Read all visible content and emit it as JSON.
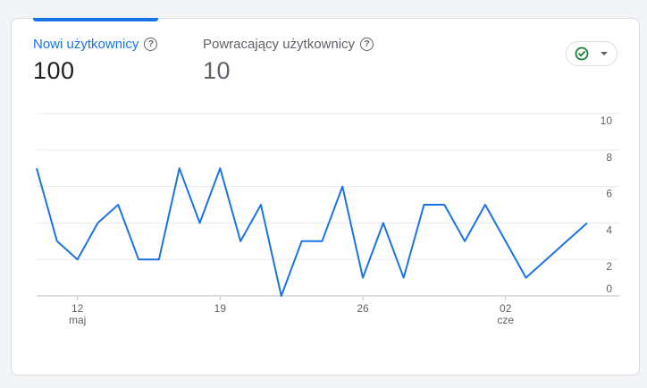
{
  "metrics": {
    "primary": {
      "label": "Nowi użytkownicy",
      "value": "100"
    },
    "secondary": {
      "label": "Powracający użytkownicy",
      "value": "10"
    }
  },
  "icons": {
    "help": "help-circle-icon",
    "check": "check-circle-icon",
    "dropdown": "chevron-down-icon"
  },
  "colors": {
    "accent": "#1a73e8",
    "check": "#188038"
  },
  "chart_data": {
    "type": "line",
    "x": [
      10,
      11,
      12,
      13,
      14,
      15,
      16,
      17,
      18,
      19,
      20,
      21,
      22,
      23,
      24,
      25,
      26,
      27,
      28,
      29,
      30,
      31,
      32,
      33,
      34,
      35,
      36,
      37
    ],
    "series": [
      {
        "values": [
          7,
          3,
          2,
          4,
          5,
          2,
          2,
          7,
          4,
          7,
          3,
          5,
          0,
          3,
          3,
          6,
          1,
          4,
          1,
          5,
          5,
          3,
          5,
          3,
          1,
          2,
          3,
          4
        ]
      }
    ],
    "ylim": [
      0,
      10
    ],
    "yticks": [
      "0",
      "2",
      "4",
      "6",
      "8",
      "10"
    ],
    "xticks": [
      {
        "x": 12,
        "label": "12",
        "sub": "maj"
      },
      {
        "x": 19,
        "label": "19",
        "sub": ""
      },
      {
        "x": 26,
        "label": "26",
        "sub": ""
      },
      {
        "x": 33,
        "label": "02",
        "sub": "cze"
      }
    ],
    "grid": true
  }
}
